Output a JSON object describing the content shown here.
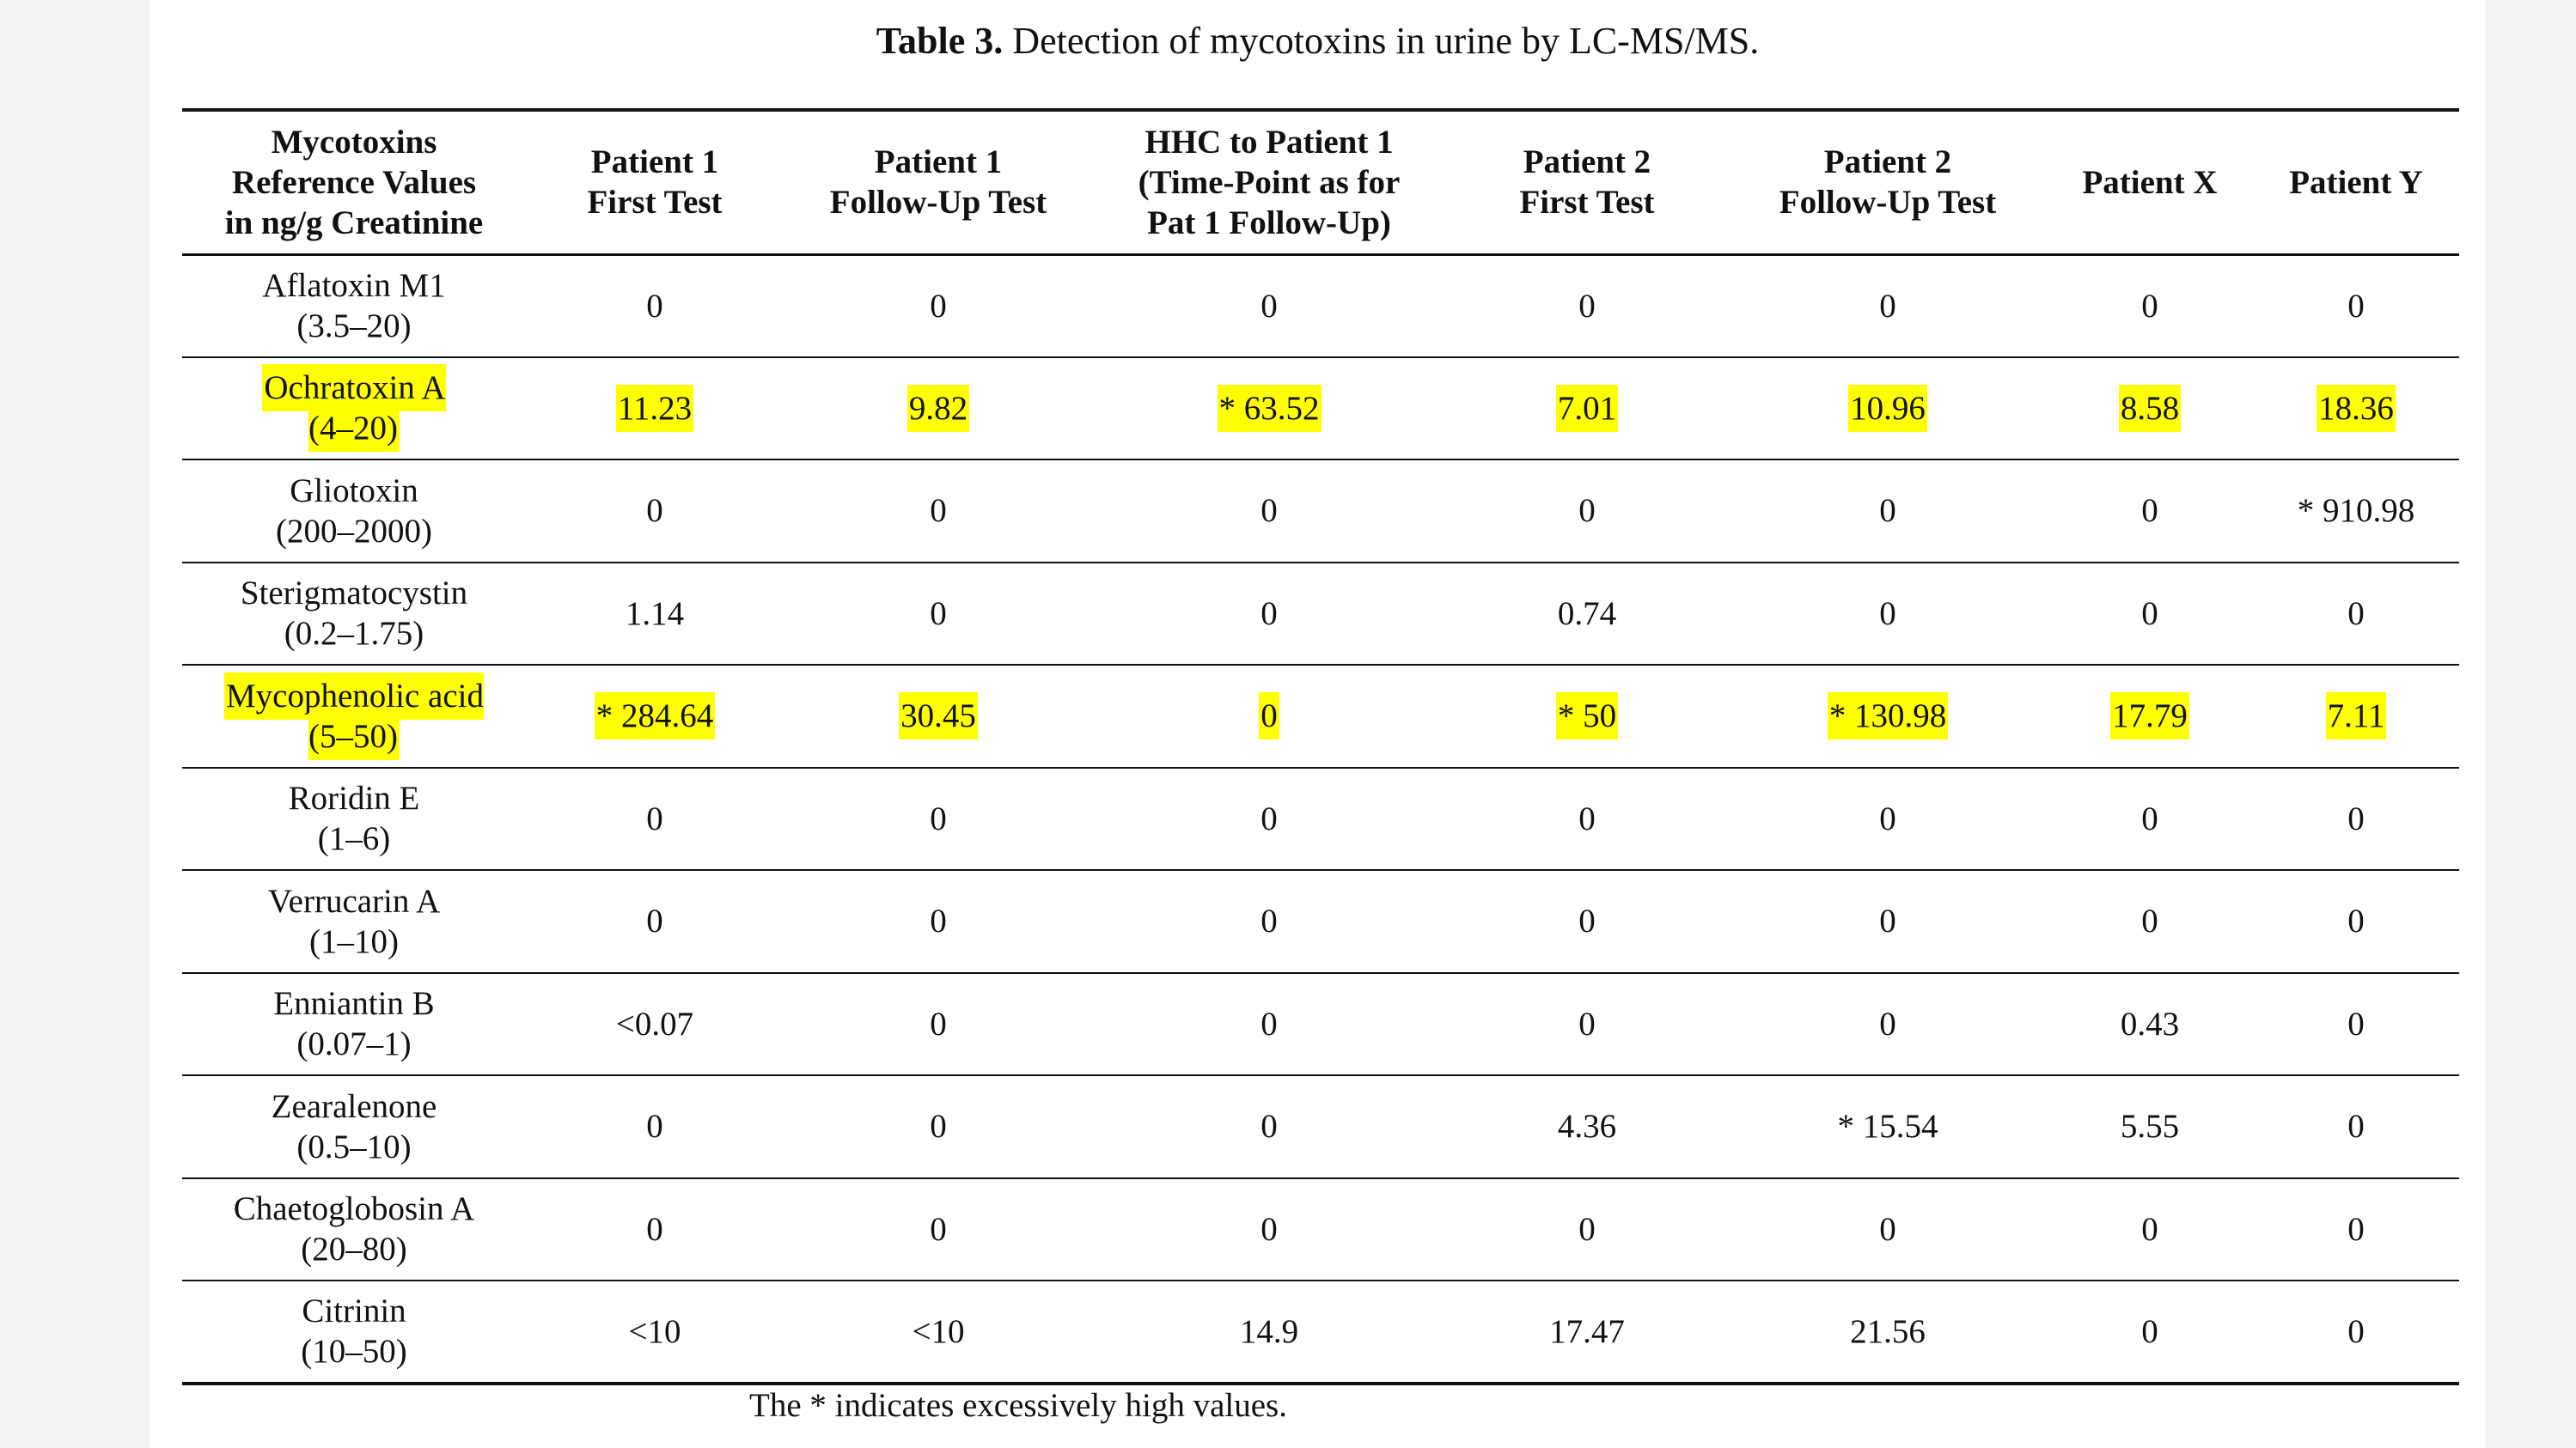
{
  "caption": {
    "label": "Table 3.",
    "text": "Detection of mycotoxins in urine by LC-MS/MS."
  },
  "colors": {
    "highlight": "#ffff00",
    "rule": "#111111",
    "background": "#ffffff"
  },
  "header": [
    [
      "Mycotoxins",
      "Reference Values",
      "in ng/g Creatinine"
    ],
    [
      "Patient 1",
      "First Test"
    ],
    [
      "Patient 1",
      "Follow-Up Test"
    ],
    [
      "HHC to Patient 1",
      "(Time-Point as for",
      "Pat 1 Follow-Up)"
    ],
    [
      "Patient 2",
      "First Test"
    ],
    [
      "Patient 2",
      "Follow-Up Test"
    ],
    [
      "Patient X"
    ],
    [
      "Patient Y"
    ]
  ],
  "rows": [
    {
      "name": "Aflatoxin M1",
      "range": "(3.5–20)",
      "highlighted": false,
      "values": [
        "0",
        "0",
        "0",
        "0",
        "0",
        "0",
        "0"
      ]
    },
    {
      "name": "Ochratoxin A",
      "range": "(4–20)",
      "highlighted": true,
      "values": [
        "11.23",
        "9.82",
        "* 63.52",
        "7.01",
        "10.96",
        "8.58",
        "18.36"
      ]
    },
    {
      "name": "Gliotoxin",
      "range": "(200–2000)",
      "highlighted": false,
      "values": [
        "0",
        "0",
        "0",
        "0",
        "0",
        "0",
        "* 910.98"
      ]
    },
    {
      "name": "Sterigmatocystin",
      "range": "(0.2–1.75)",
      "highlighted": false,
      "values": [
        "1.14",
        "0",
        "0",
        "0.74",
        "0",
        "0",
        "0"
      ]
    },
    {
      "name": "Mycophenolic acid",
      "range": "(5–50)",
      "highlighted": true,
      "values": [
        "* 284.64",
        "30.45",
        "0",
        "* 50",
        "* 130.98",
        "17.79",
        "7.11"
      ]
    },
    {
      "name": "Roridin E",
      "range": "(1–6)",
      "highlighted": false,
      "values": [
        "0",
        "0",
        "0",
        "0",
        "0",
        "0",
        "0"
      ]
    },
    {
      "name": "Verrucarin A",
      "range": "(1–10)",
      "highlighted": false,
      "values": [
        "0",
        "0",
        "0",
        "0",
        "0",
        "0",
        "0"
      ]
    },
    {
      "name": "Enniantin B",
      "range": "(0.07–1)",
      "highlighted": false,
      "values": [
        "<0.07",
        "0",
        "0",
        "0",
        "0",
        "0.43",
        "0"
      ]
    },
    {
      "name": "Zearalenone",
      "range": "(0.5–10)",
      "highlighted": false,
      "values": [
        "0",
        "0",
        "0",
        "4.36",
        "* 15.54",
        "5.55",
        "0"
      ]
    },
    {
      "name": "Chaetoglobosin A",
      "range": "(20–80)",
      "highlighted": false,
      "values": [
        "0",
        "0",
        "0",
        "0",
        "0",
        "0",
        "0"
      ]
    },
    {
      "name": "Citrinin",
      "range": "(10–50)",
      "highlighted": false,
      "values": [
        "<10",
        "<10",
        "14.9",
        "17.47",
        "21.56",
        "0",
        "0"
      ]
    }
  ],
  "footnote": "The * indicates excessively high values."
}
